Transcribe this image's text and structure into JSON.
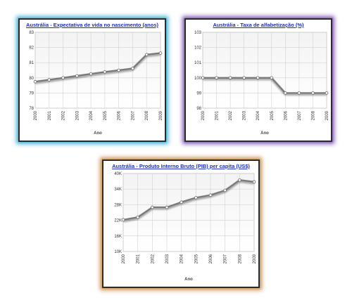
{
  "chart_data": [
    {
      "type": "line",
      "title": "Austrália - Expectativa de vida no nascimento (anos)",
      "xlabel": "Ano",
      "ylabel": "",
      "categories": [
        "2000",
        "2001",
        "2002",
        "2003",
        "2004",
        "2005",
        "2006",
        "2007",
        "2008",
        "2009"
      ],
      "values": [
        79.75,
        79.87,
        80.0,
        80.13,
        80.26,
        80.39,
        80.5,
        80.62,
        81.53,
        81.63
      ],
      "ylim": [
        78,
        83
      ],
      "yticks": [
        "78",
        "79",
        "80",
        "81",
        "82",
        "83"
      ],
      "grid": true,
      "line_color": "#7a7a7a"
    },
    {
      "type": "line",
      "title": "Austrália - Taxa de alfabetização (%)",
      "xlabel": "Ano",
      "ylabel": "",
      "categories": [
        "2000",
        "2001",
        "2002",
        "2003",
        "2004",
        "2005",
        "2006",
        "2007",
        "2008",
        "2009"
      ],
      "values": [
        100,
        100,
        100,
        100,
        100,
        100,
        99,
        99,
        99,
        99
      ],
      "ylim": [
        98,
        103
      ],
      "yticks": [
        "98",
        "99",
        "100",
        "101",
        "102",
        "103"
      ],
      "grid": true,
      "line_color": "#7a7a7a"
    },
    {
      "type": "line",
      "title": "Austrália - Produto Interno Bruto (PIB) per capita (US$)",
      "xlabel": "Ano",
      "ylabel": "",
      "categories": [
        "2000",
        "2001",
        "2002",
        "2003",
        "2004",
        "2005",
        "2006",
        "2007",
        "2008",
        "2009"
      ],
      "values": [
        22200,
        23200,
        27000,
        27000,
        29000,
        30700,
        31700,
        33500,
        37500,
        36800
      ],
      "ylim": [
        10000,
        40000
      ],
      "yticks": [
        "10K",
        "16K",
        "22K",
        "28K",
        "34K",
        "40K"
      ],
      "grid": true,
      "line_color": "#7a7a7a"
    }
  ]
}
